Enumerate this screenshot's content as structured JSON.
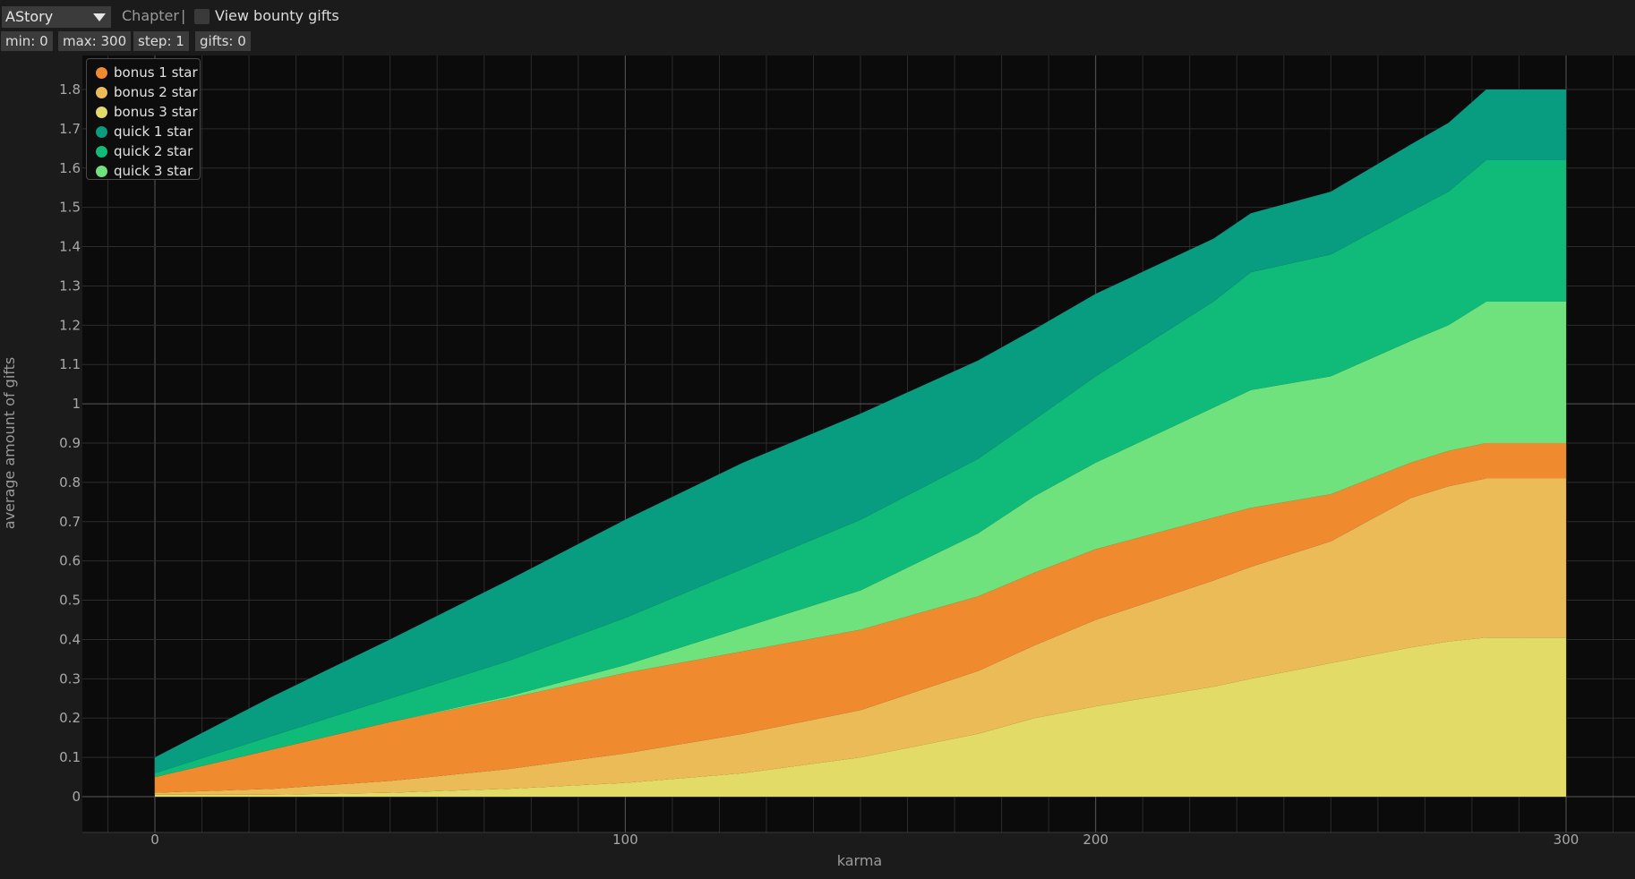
{
  "toolbar": {
    "story_select": "AStory",
    "chapter_label": "Chapter",
    "separator": "|",
    "view_bounty_label": "View bounty gifts",
    "chips": [
      "min: 0",
      "max: 300",
      "step: 1",
      "gifts: 0"
    ]
  },
  "colors": {
    "background": "#0b0b0b",
    "grid": "#2c2c2c",
    "grid_major": "#5a5a5a"
  },
  "chart_data": {
    "type": "area",
    "stacked": true,
    "xlabel": "karma",
    "ylabel": "average amount of gifts",
    "xlim": [
      0,
      300
    ],
    "ylim": [
      0,
      1.8
    ],
    "x_ticks": [
      0,
      100,
      200,
      300
    ],
    "y_ticks": [
      0,
      0.1,
      0.2,
      0.3,
      0.4,
      0.5,
      0.6,
      0.7,
      0.8,
      0.9,
      1,
      1.1,
      1.2,
      1.3,
      1.4,
      1.5,
      1.6,
      1.7,
      1.8
    ],
    "grid": true,
    "legend_position": "top-left",
    "x": [
      0,
      25,
      50,
      75,
      100,
      125,
      150,
      175,
      187,
      200,
      225,
      233,
      250,
      267,
      275,
      283,
      300
    ],
    "series": [
      {
        "name": "bonus 3 star",
        "color": "#e2db67",
        "values": [
          0.005,
          0.005,
          0.01,
          0.02,
          0.035,
          0.06,
          0.1,
          0.16,
          0.2,
          0.23,
          0.28,
          0.3,
          0.34,
          0.38,
          0.395,
          0.405,
          0.405
        ]
      },
      {
        "name": "bonus 2 star",
        "color": "#ebbb58",
        "values": [
          0.005,
          0.015,
          0.03,
          0.05,
          0.075,
          0.1,
          0.12,
          0.16,
          0.185,
          0.22,
          0.27,
          0.285,
          0.31,
          0.38,
          0.395,
          0.405,
          0.405
        ]
      },
      {
        "name": "bonus 1 star",
        "color": "#ef8a2f",
        "values": [
          0.04,
          0.1,
          0.15,
          0.18,
          0.205,
          0.21,
          0.205,
          0.19,
          0.185,
          0.18,
          0.16,
          0.15,
          0.12,
          0.09,
          0.09,
          0.09,
          0.09
        ]
      },
      {
        "name": "quick 3 star",
        "color": "#70e27d",
        "values": [
          0.0,
          0.0,
          0.0,
          0.005,
          0.02,
          0.06,
          0.1,
          0.16,
          0.195,
          0.22,
          0.28,
          0.3,
          0.3,
          0.31,
          0.32,
          0.36,
          0.36
        ]
      },
      {
        "name": "quick 2 star",
        "color": "#10bb79",
        "values": [
          0.01,
          0.035,
          0.06,
          0.09,
          0.12,
          0.15,
          0.18,
          0.19,
          0.195,
          0.22,
          0.27,
          0.3,
          0.31,
          0.33,
          0.34,
          0.36,
          0.36
        ]
      },
      {
        "name": "quick 1 star",
        "color": "#089c80",
        "values": [
          0.04,
          0.1,
          0.15,
          0.205,
          0.25,
          0.27,
          0.27,
          0.25,
          0.23,
          0.21,
          0.16,
          0.15,
          0.16,
          0.17,
          0.175,
          0.18,
          0.18
        ]
      }
    ],
    "legend_order": [
      "bonus 1 star",
      "bonus 2 star",
      "bonus 3 star",
      "quick 1 star",
      "quick 2 star",
      "quick 3 star"
    ]
  }
}
